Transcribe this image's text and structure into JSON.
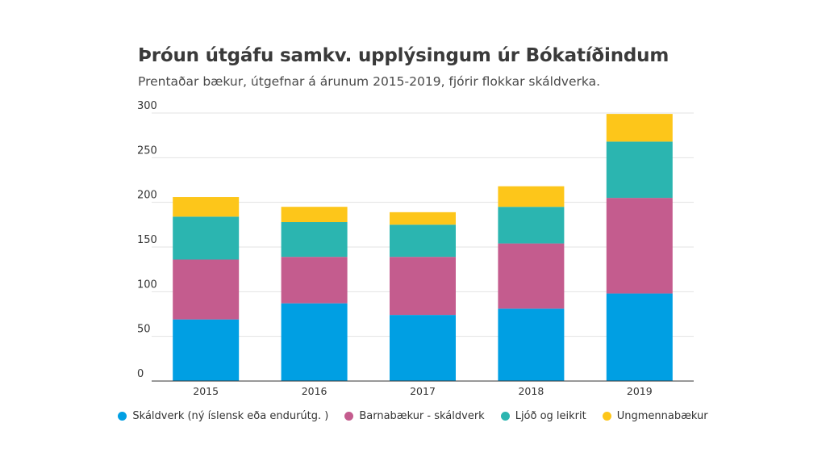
{
  "chart_data": {
    "type": "bar",
    "stacked": true,
    "title": "Þróun útgáfu samkv. upplýsingum úr Bókatíðindum",
    "subtitle": "Prentaðar bækur, útgefnar á árunum 2015-2019, fjórir flokkar skáldverka.",
    "categories": [
      "2015",
      "2016",
      "2017",
      "2018",
      "2019"
    ],
    "series": [
      {
        "name": "Skáldverk (ný íslensk eða endurútg. )",
        "color": "#009fe3",
        "values": [
          69,
          87,
          74,
          81,
          98
        ]
      },
      {
        "name": "Barnabækur - skáldverk",
        "color": "#c45c8e",
        "values": [
          67,
          52,
          65,
          73,
          107
        ]
      },
      {
        "name": "Ljóð og leikrit",
        "color": "#2bb5b0",
        "values": [
          48,
          39,
          36,
          41,
          63
        ]
      },
      {
        "name": "Ungmennabækur",
        "color": "#fdc61a",
        "values": [
          22,
          17,
          14,
          23,
          31
        ]
      }
    ],
    "ylim": [
      0,
      300
    ],
    "yticks": [
      0,
      50,
      100,
      150,
      200,
      250,
      300
    ],
    "xlabel": "",
    "ylabel": "",
    "grid": true,
    "legend_position": "bottom"
  }
}
